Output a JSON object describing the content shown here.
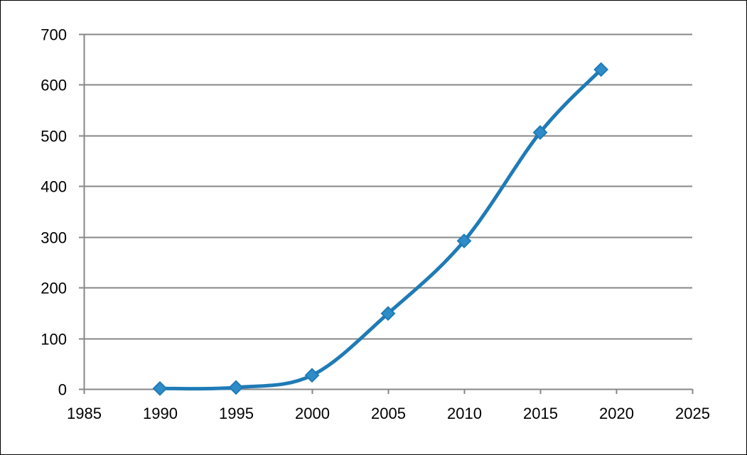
{
  "chart_data": {
    "type": "line",
    "title": "",
    "xlabel": "",
    "ylabel": "",
    "smoothed": true,
    "marker": "diamond",
    "grid": {
      "horizontal": true,
      "vertical": false
    },
    "legend": "none",
    "xlim": [
      1985,
      2025
    ],
    "ylim": [
      0,
      700
    ],
    "x_ticks": [
      1985,
      1990,
      1995,
      2000,
      2005,
      2010,
      2015,
      2020,
      2025
    ],
    "y_ticks": [
      0,
      100,
      200,
      300,
      400,
      500,
      600,
      700
    ],
    "x_tick_labels": [
      "1985",
      "1990",
      "1995",
      "2000",
      "2005",
      "2010",
      "2015",
      "2020",
      "2025"
    ],
    "y_tick_labels": [
      "0",
      "100",
      "200",
      "300",
      "400",
      "500",
      "600",
      "700"
    ],
    "series": [
      {
        "color": "#1F7BB6",
        "marker_fill": "#2E8CC8",
        "points": [
          {
            "x": 1990,
            "y": 1
          },
          {
            "x": 1995,
            "y": 3
          },
          {
            "x": 2000,
            "y": 27
          },
          {
            "x": 2005,
            "y": 149
          },
          {
            "x": 2010,
            "y": 292
          },
          {
            "x": 2015,
            "y": 506
          },
          {
            "x": 2019,
            "y": 630
          }
        ]
      }
    ],
    "colors": {
      "gridline": "#878787",
      "axis": "#878787",
      "text": "#000000"
    }
  }
}
